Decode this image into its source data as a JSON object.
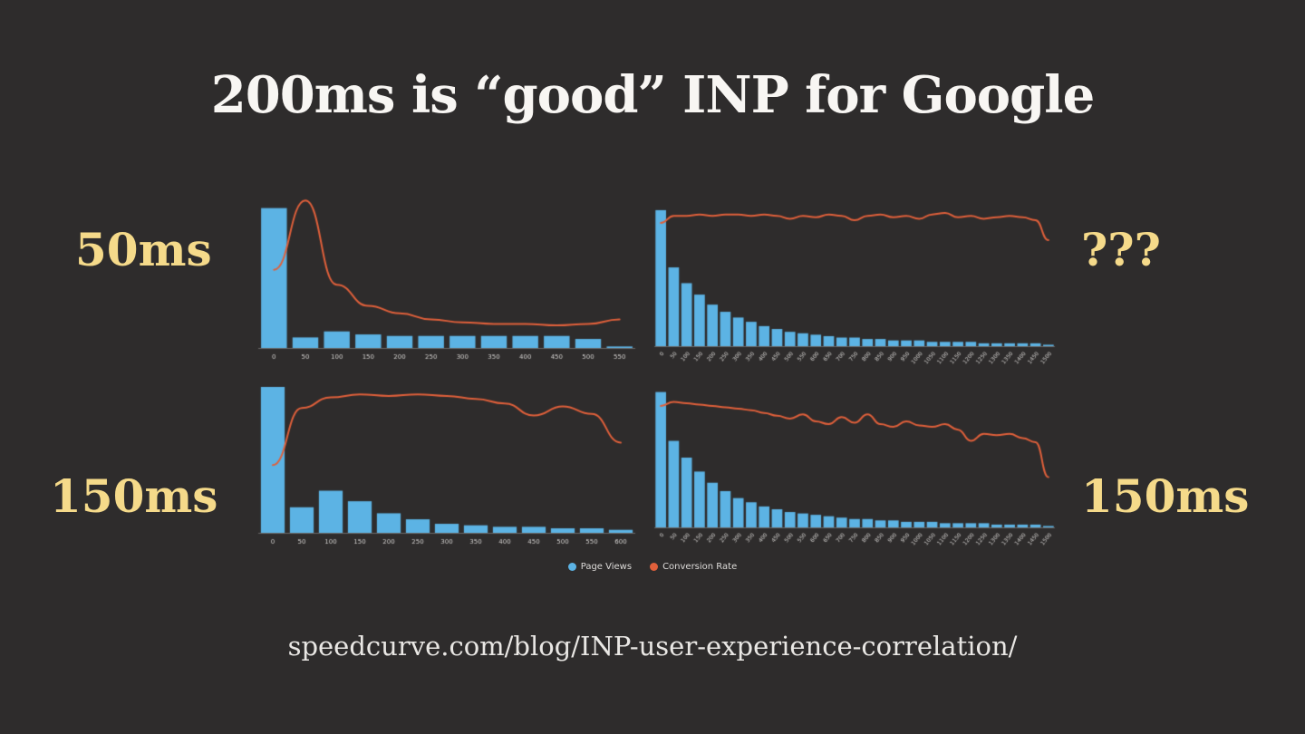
{
  "slide": {
    "title": "200ms is “good” INP for Google",
    "footer_url": "speedcurve.com/blog/INP-user-experience-correlation/"
  },
  "annotations": {
    "top_left": "50ms",
    "top_right": "???",
    "bottom_left": "150ms",
    "bottom_right": "150ms"
  },
  "legend": [
    {
      "label": "Page Views",
      "color": "#5cb3e4"
    },
    {
      "label": "Conversion Rate",
      "color": "#e0603b"
    }
  ],
  "colors": {
    "background": "#2e2c2c",
    "title_text": "#f8f6f3",
    "annotation_text": "#f5da8a",
    "footer_text": "#e9e7e4",
    "bar": "#5cb3e4",
    "line": "#e0603b",
    "axis": "#9a9a9a",
    "tick_text": "#d6d4d2"
  },
  "chart_data": [
    {
      "name": "inp-histogram-50ms",
      "type": "bar+line",
      "position": "top-left",
      "annotation": "50ms",
      "rotate_ticks": false,
      "ylim": [
        0,
        100
      ],
      "units": "relative-percent-of-plot-height",
      "categories": [
        "0",
        "50",
        "100",
        "150",
        "200",
        "250",
        "300",
        "350",
        "400",
        "450",
        "500",
        "550"
      ],
      "series": [
        {
          "name": "Page Views",
          "type": "bar",
          "values": [
            93,
            7,
            11,
            9,
            8,
            8,
            8,
            8,
            8,
            8,
            6,
            1
          ]
        },
        {
          "name": "Conversion Rate",
          "type": "line",
          "values": [
            52,
            98,
            42,
            28,
            23,
            19,
            17,
            16,
            16,
            15,
            16,
            19
          ]
        }
      ]
    },
    {
      "name": "inp-histogram-unknown",
      "type": "bar+line",
      "position": "top-right",
      "annotation": "???",
      "rotate_ticks": true,
      "ylim": [
        0,
        100
      ],
      "units": "relative-percent-of-plot-height",
      "categories": [
        "0",
        "50",
        "100",
        "150",
        "200",
        "250",
        "300",
        "350",
        "400",
        "450",
        "500",
        "550",
        "600",
        "650",
        "700",
        "750",
        "800",
        "850",
        "900",
        "950",
        "1000",
        "1050",
        "1100",
        "1150",
        "1200",
        "1250",
        "1300",
        "1350",
        "1400",
        "1450",
        "1500"
      ],
      "series": [
        {
          "name": "Page Views",
          "type": "bar",
          "values": [
            95,
            55,
            44,
            36,
            29,
            24,
            20,
            17,
            14,
            12,
            10,
            9,
            8,
            7,
            6,
            6,
            5,
            5,
            4,
            4,
            4,
            3,
            3,
            3,
            3,
            2,
            2,
            2,
            2,
            2,
            1
          ]
        },
        {
          "name": "Conversion Rate",
          "type": "line",
          "values": [
            86,
            91,
            91,
            92,
            91,
            92,
            92,
            91,
            92,
            91,
            89,
            91,
            90,
            92,
            91,
            88,
            91,
            92,
            90,
            91,
            89,
            92,
            93,
            90,
            91,
            89,
            90,
            91,
            90,
            88,
            74
          ]
        }
      ]
    },
    {
      "name": "inp-histogram-150ms-left",
      "type": "bar+line",
      "position": "bottom-left",
      "annotation": "150ms",
      "rotate_ticks": false,
      "ylim": [
        0,
        100
      ],
      "units": "relative-percent-of-plot-height",
      "categories": [
        "0",
        "50",
        "100",
        "150",
        "200",
        "250",
        "300",
        "350",
        "400",
        "450",
        "500",
        "550",
        "600"
      ],
      "series": [
        {
          "name": "Page Views",
          "type": "bar",
          "values": [
            97,
            17,
            28,
            21,
            13,
            9,
            6,
            5,
            4,
            4,
            3,
            3,
            2
          ]
        },
        {
          "name": "Conversion Rate",
          "type": "line",
          "values": [
            45,
            83,
            90,
            92,
            91,
            92,
            91,
            89,
            86,
            78,
            84,
            79,
            60
          ]
        }
      ]
    },
    {
      "name": "inp-histogram-150ms-right",
      "type": "bar+line",
      "position": "bottom-right",
      "annotation": "150ms",
      "rotate_ticks": true,
      "ylim": [
        0,
        100
      ],
      "units": "relative-percent-of-plot-height",
      "categories": [
        "0",
        "50",
        "100",
        "150",
        "200",
        "250",
        "300",
        "350",
        "400",
        "450",
        "500",
        "550",
        "600",
        "650",
        "700",
        "750",
        "800",
        "850",
        "900",
        "950",
        "1000",
        "1050",
        "1100",
        "1150",
        "1200",
        "1250",
        "1300",
        "1350",
        "1400",
        "1450",
        "1500"
      ],
      "series": [
        {
          "name": "Page Views",
          "type": "bar",
          "values": [
            97,
            62,
            50,
            40,
            32,
            26,
            21,
            18,
            15,
            13,
            11,
            10,
            9,
            8,
            7,
            6,
            6,
            5,
            5,
            4,
            4,
            4,
            3,
            3,
            3,
            3,
            2,
            2,
            2,
            2,
            1
          ]
        },
        {
          "name": "Conversion Rate",
          "type": "line",
          "values": [
            87,
            90,
            89,
            88,
            87,
            86,
            85,
            84,
            82,
            80,
            78,
            81,
            76,
            74,
            79,
            75,
            81,
            74,
            72,
            76,
            73,
            72,
            74,
            70,
            62,
            67,
            66,
            67,
            64,
            61,
            36
          ]
        }
      ]
    }
  ]
}
